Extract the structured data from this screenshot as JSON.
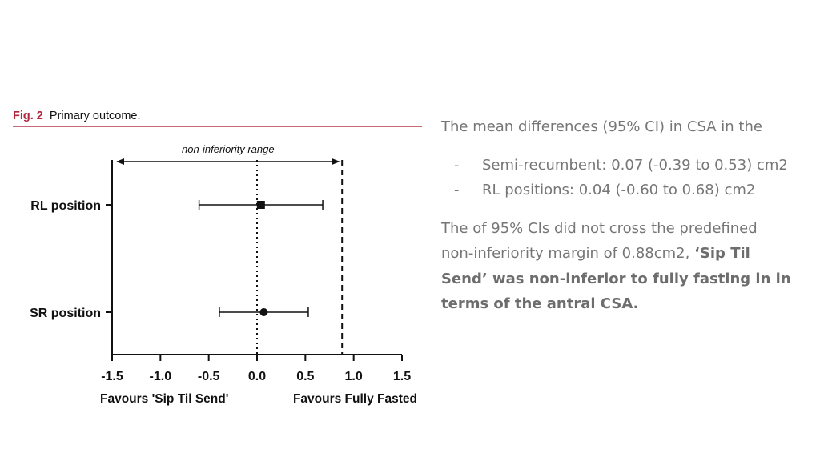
{
  "figure": {
    "label": "Fig. 2",
    "caption": "Primary outcome."
  },
  "chart_data": {
    "type": "forest",
    "range_label": "non-inferiority range",
    "categories": [
      "RL position",
      "SR position"
    ],
    "estimates": [
      {
        "name": "RL position",
        "mean": 0.04,
        "lower": -0.6,
        "upper": 0.68,
        "marker": "square"
      },
      {
        "name": "SR position",
        "mean": 0.07,
        "lower": -0.39,
        "upper": 0.53,
        "marker": "circle"
      }
    ],
    "xlim": [
      -1.5,
      1.5
    ],
    "x_ticks": [
      "-1.5",
      "-1.0",
      "-0.5",
      "0.0",
      "0.5",
      "1.0",
      "1.5"
    ],
    "x_tick_values": [
      -1.5,
      -1.0,
      -0.5,
      0.0,
      0.5,
      1.0,
      1.5
    ],
    "reference_line": 0.0,
    "margin_line": 0.88,
    "range_arrow": [
      -1.45,
      0.85
    ],
    "xlabel_left": "Favours 'Sip Til Send'",
    "xlabel_right": "Favours Fully Fasted"
  },
  "summary": {
    "intro": "The mean differences (95% CI) in CSA in the",
    "bullets": [
      "Semi-recumbent: 0.07 (-0.39 to 0.53) cm2",
      "RL positions: 0.04 (-0.60 to 0.68) cm2"
    ],
    "conclusion_plain": "The of 95% CIs did not cross the predefined non-inferiority margin of 0.88cm2, ",
    "conclusion_bold": "‘Sip Til Send’ was non-inferior to fully fasting in in terms of the antral CSA."
  }
}
